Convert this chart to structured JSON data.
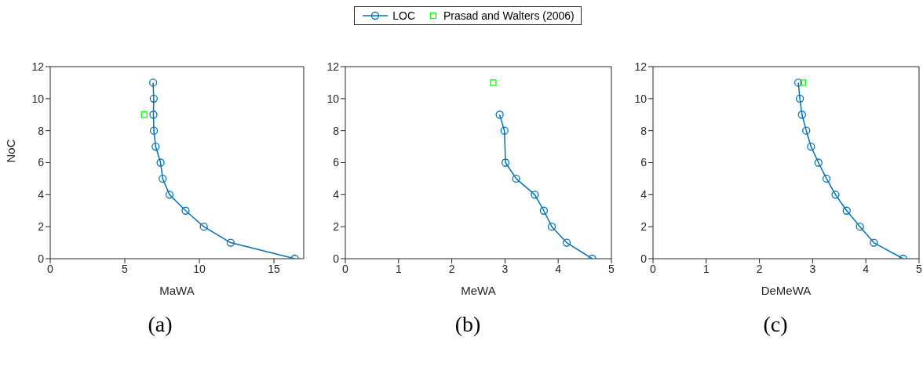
{
  "chart_data": [
    {
      "type": "line",
      "xlabel": "MaWA",
      "ylabel": "NoC",
      "xlim": [
        0,
        17
      ],
      "xticks": [
        0,
        5,
        10,
        15
      ],
      "ylim": [
        0,
        12
      ],
      "yticks": [
        0,
        2,
        4,
        6,
        8,
        10,
        12
      ],
      "legend": "top",
      "annotations": [
        "(a)"
      ],
      "series": [
        {
          "name": "LOC",
          "marker": "circle",
          "line_style": "solid",
          "color": "#0072bd",
          "x": [
            16.4,
            12.1,
            10.3,
            9.08,
            8.0,
            7.54,
            7.4,
            7.07,
            6.95,
            6.92,
            6.94,
            6.9
          ],
          "values": [
            0,
            1,
            2,
            3,
            4,
            5,
            6,
            7,
            8,
            9,
            10,
            11
          ]
        },
        {
          "name": "Prasad and Walters (2006)",
          "type": "scatter",
          "marker": "square",
          "color": "#00ff00",
          "x": [
            6.3
          ],
          "values": [
            9
          ]
        }
      ]
    },
    {
      "type": "line",
      "xlabel": "MeWA",
      "xlim": [
        0,
        5
      ],
      "xticks": [
        0,
        1,
        2,
        3,
        4,
        5
      ],
      "ylim": [
        0,
        12
      ],
      "yticks": [
        0,
        2,
        4,
        6,
        8,
        10,
        12
      ],
      "annotations": [
        "(b)"
      ],
      "series": [
        {
          "marker": "circle",
          "line_style": "solid",
          "color": "#0072bd",
          "x": [
            4.64,
            4.16,
            3.88,
            3.73,
            3.56,
            3.21,
            3.01,
            2.99,
            2.9
          ],
          "values": [
            0,
            1,
            2,
            3,
            4,
            5,
            6,
            8,
            9
          ]
        },
        {
          "type": "scatter",
          "marker": "square",
          "color": "#00ff00",
          "x": [
            2.78
          ],
          "values": [
            11
          ]
        }
      ]
    },
    {
      "type": "line",
      "xlabel": "DeMeWA",
      "xlim": [
        0,
        5
      ],
      "xticks": [
        0,
        1,
        2,
        3,
        4,
        5
      ],
      "ylim": [
        0,
        12
      ],
      "yticks": [
        0,
        2,
        4,
        6,
        8,
        10,
        12
      ],
      "annotations": [
        "(c)"
      ],
      "series": [
        {
          "marker": "circle",
          "line_style": "solid",
          "color": "#0072bd",
          "x": [
            4.7,
            4.15,
            3.89,
            3.64,
            3.43,
            3.26,
            3.11,
            2.97,
            2.88,
            2.8,
            2.76,
            2.73
          ],
          "values": [
            0,
            1,
            2,
            3,
            4,
            5,
            6,
            7,
            8,
            9,
            10,
            11
          ]
        },
        {
          "type": "scatter",
          "marker": "square",
          "color": "#00ff00",
          "x": [
            2.82
          ],
          "values": [
            11
          ]
        }
      ]
    }
  ]
}
